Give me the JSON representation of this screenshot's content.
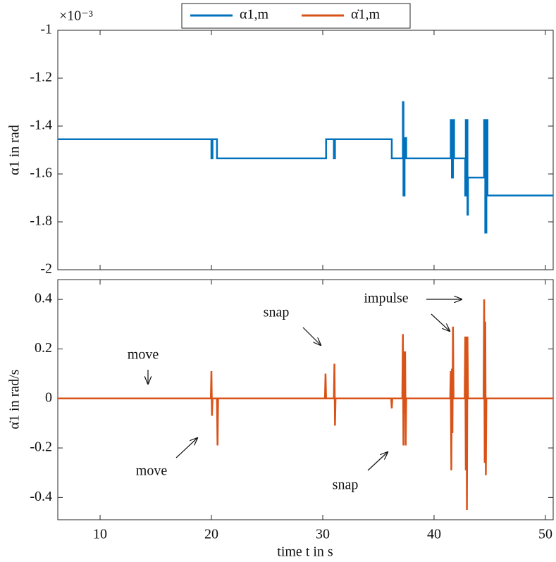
{
  "chart_data": [
    {
      "type": "line",
      "ylabel": "α1 in rad",
      "y_exponent_label": "×10⁻³",
      "legend": "top",
      "xlim": [
        6.2,
        50.7
      ],
      "xticks": [
        10,
        20,
        30,
        40,
        50
      ],
      "ylim": [
        -2,
        -1
      ],
      "yticks": [
        -2,
        -1.8,
        -1.6,
        -1.4,
        -1.2,
        -1
      ],
      "x": [
        6.2,
        20.0,
        20.0,
        20.1,
        20.1,
        20.5,
        20.5,
        30.3,
        30.3,
        31.0,
        31.0,
        31.1,
        31.1,
        36.2,
        36.2,
        37.2,
        37.2,
        37.25,
        37.25,
        37.35,
        37.35,
        37.5,
        37.5,
        41.5,
        41.5,
        41.6,
        41.6,
        41.7,
        41.7,
        41.8,
        41.8,
        42.8,
        42.8,
        42.85,
        42.85,
        43.0,
        43.0,
        43.05,
        43.05,
        44.5,
        44.5,
        44.6,
        44.6,
        44.7,
        44.7,
        44.8,
        44.8,
        50.7
      ],
      "series": [
        {
          "name": "α1,m",
          "color": "#0072bd",
          "values": [
            -1.455,
            -1.455,
            -1.535,
            -1.535,
            -1.455,
            -1.455,
            -1.535,
            -1.535,
            -1.455,
            -1.455,
            -1.535,
            -1.535,
            -1.455,
            -1.455,
            -1.535,
            -1.535,
            -1.3,
            -1.3,
            -1.69,
            -1.69,
            -1.45,
            -1.45,
            -1.535,
            -1.535,
            -1.375,
            -1.375,
            -1.615,
            -1.615,
            -1.375,
            -1.375,
            -1.535,
            -1.535,
            -1.69,
            -1.69,
            -1.375,
            -1.375,
            -1.77,
            -1.77,
            -1.615,
            -1.615,
            -1.375,
            -1.375,
            -1.845,
            -1.845,
            -1.375,
            -1.375,
            -1.69,
            -1.69
          ]
        }
      ]
    },
    {
      "type": "line",
      "ylabel": "α̇1 in rad/s",
      "xlabel": "time t in s",
      "annotations": [
        "move",
        "move",
        "snap",
        "snap",
        "impulse"
      ],
      "xlim": [
        6.2,
        50.7
      ],
      "xticks": [
        10,
        20,
        30,
        40,
        50
      ],
      "ylim": [
        -0.49,
        0.48
      ],
      "yticks": [
        -0.4,
        -0.2,
        0,
        0.2,
        0.4
      ],
      "x": [
        6.2,
        19.95,
        20.0,
        20.05,
        20.1,
        20.5,
        20.55,
        20.6,
        30.2,
        30.25,
        30.3,
        31.0,
        31.05,
        31.1,
        31.15,
        36.15,
        36.2,
        36.25,
        37.15,
        37.2,
        37.25,
        37.3,
        37.35,
        37.4,
        37.45,
        37.5,
        41.45,
        41.5,
        41.55,
        41.6,
        41.65,
        41.7,
        41.75,
        42.75,
        42.8,
        42.85,
        42.9,
        42.95,
        43.0,
        43.05,
        44.45,
        44.5,
        44.55,
        44.6,
        44.65,
        44.7,
        50.7
      ],
      "series": [
        {
          "name": "α̇1,m",
          "color": "#d95319",
          "values": [
            0,
            0,
            0.11,
            -0.07,
            0,
            0,
            -0.19,
            0,
            0,
            0.1,
            0,
            0,
            0.14,
            -0.11,
            0,
            0,
            -0.04,
            0,
            0,
            0.26,
            -0.19,
            0.19,
            -0.06,
            0.19,
            -0.19,
            0,
            0,
            0.11,
            -0.29,
            0.12,
            -0.14,
            0.29,
            0,
            0,
            0.25,
            -0.29,
            0.25,
            -0.45,
            0.25,
            0,
            0,
            0.4,
            -0.26,
            0.31,
            -0.31,
            0,
            0
          ]
        }
      ]
    }
  ]
}
